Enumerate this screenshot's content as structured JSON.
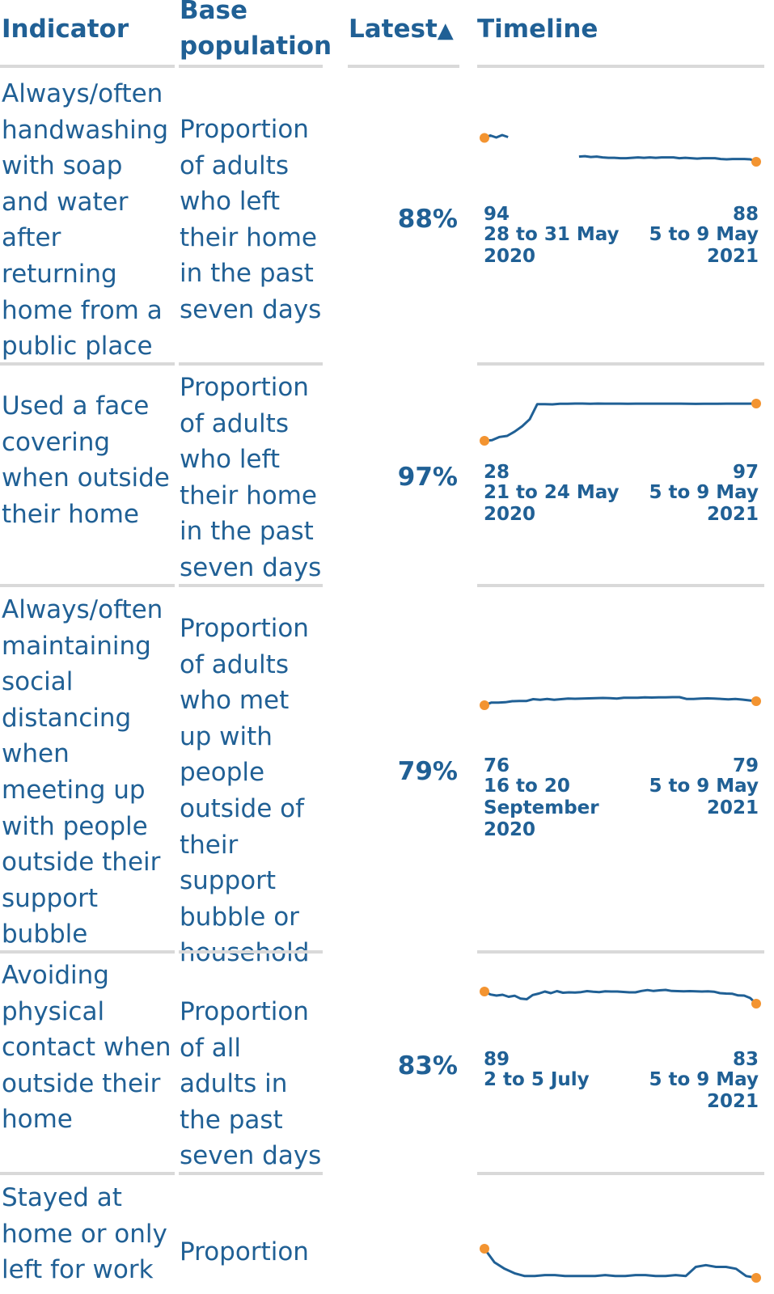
{
  "colors": {
    "text": "#206095",
    "line": "#206095",
    "dot": "#f39431",
    "rule": "#d9d9d9"
  },
  "header": {
    "indicator": "Indicator",
    "base_line1": "Base",
    "base_line2": "population",
    "latest": "Latest",
    "latest_sort_icon": "▲",
    "timeline": "Timeline"
  },
  "rows": [
    {
      "indicator": "Always/often handwashing with soap and water after returning home from a public place",
      "base": "Proportion of adults who left their home in the past seven days",
      "latest": "88%",
      "start_value": "94",
      "start_date": "28 to 31 May\n2020",
      "end_value": "88",
      "end_date": "5 to 9 May\n2021",
      "series": [
        94,
        94.6,
        94.1,
        94.7,
        94.2,
        null,
        null,
        null,
        null,
        null,
        null,
        null,
        null,
        null,
        null,
        null,
        89.3,
        89.4,
        89.2,
        89.3,
        89.1,
        89,
        89,
        88.9,
        88.9,
        89,
        89.1,
        89,
        89.1,
        89,
        89.1,
        89.1,
        89.1,
        88.9,
        89,
        88.9,
        88.8,
        88.9,
        88.9,
        88.9,
        88.7,
        88.6,
        88.7,
        88.7,
        88.7,
        88.6,
        88
      ]
    },
    {
      "indicator": "Used a face covering when outside their home",
      "base": "Proportion of adults who left their home in the past seven days",
      "latest": "97%",
      "start_value": "28",
      "start_date": "21 to 24 May\n2020",
      "end_value": "97",
      "end_date": "5 to 9 May\n2021",
      "series": [
        28,
        29,
        35,
        37,
        45,
        55,
        68,
        96,
        96,
        95.5,
        96.5,
        96.6,
        97,
        97,
        96.6,
        97,
        96.8,
        96.9,
        96.9,
        96.7,
        96.8,
        96.8,
        96.8,
        96.8,
        96.8,
        96.8,
        96.8,
        96.5,
        96.4,
        96.6,
        96.5,
        96.7,
        96.8,
        96.9,
        96.8,
        96.9,
        97
      ]
    },
    {
      "indicator": "Always/often maintaining social distancing when meeting up with people outside their support bubble",
      "base": "Proportion of adults who met up with people outside of their support bubble or household",
      "latest": "79%",
      "start_value": "76",
      "start_date": "16 to 20\nSeptember\n2020",
      "end_value": "79",
      "end_date": "5 to 9 May\n2021",
      "series": [
        76,
        78,
        78,
        78.2,
        79,
        79.1,
        79.1,
        80.5,
        80,
        80.7,
        80.1,
        80.5,
        81,
        80.8,
        80.9,
        81.1,
        81.3,
        81.4,
        81.3,
        81,
        81.5,
        81.5,
        81.5,
        81.8,
        81.7,
        81.8,
        81.9,
        82,
        82,
        80.7,
        80.6,
        80.9,
        81.1,
        81,
        80.7,
        80.4,
        80.6,
        80.2,
        79.6,
        79
      ]
    },
    {
      "indicator": "Avoiding physical contact when outside their home",
      "base": "Proportion of all adults in the past seven days",
      "latest": "83%",
      "start_value": "89",
      "start_date": "2 to 5 July",
      "end_value": "83",
      "end_date": "5 to 9 May\n2021",
      "series": [
        89,
        87.5,
        87,
        87.4,
        86.4,
        86.9,
        85.5,
        85.2,
        87.3,
        88,
        89,
        88.2,
        89.2,
        88.4,
        88.6,
        88.5,
        88.7,
        89.2,
        88.9,
        88.7,
        89.1,
        89,
        89,
        88.8,
        88.6,
        88.6,
        89.3,
        89.7,
        89.3,
        89.6,
        89.8,
        89.3,
        89.2,
        89.1,
        89.2,
        89.1,
        89,
        89.1,
        88.9,
        88.2,
        88,
        87.9,
        87.1,
        87,
        85.8,
        83
      ]
    },
    {
      "indicator": "Stayed at home or only left for work",
      "base": "Proportion",
      "latest": "",
      "start_value": "",
      "start_date": "",
      "end_value": "",
      "end_date": "",
      "series": [
        60,
        45,
        38,
        33,
        30,
        30,
        31,
        31,
        30,
        30,
        30,
        30,
        31,
        30,
        30,
        31,
        31,
        30,
        30,
        31,
        30,
        40,
        42,
        40,
        40,
        38,
        30,
        28
      ]
    }
  ]
}
